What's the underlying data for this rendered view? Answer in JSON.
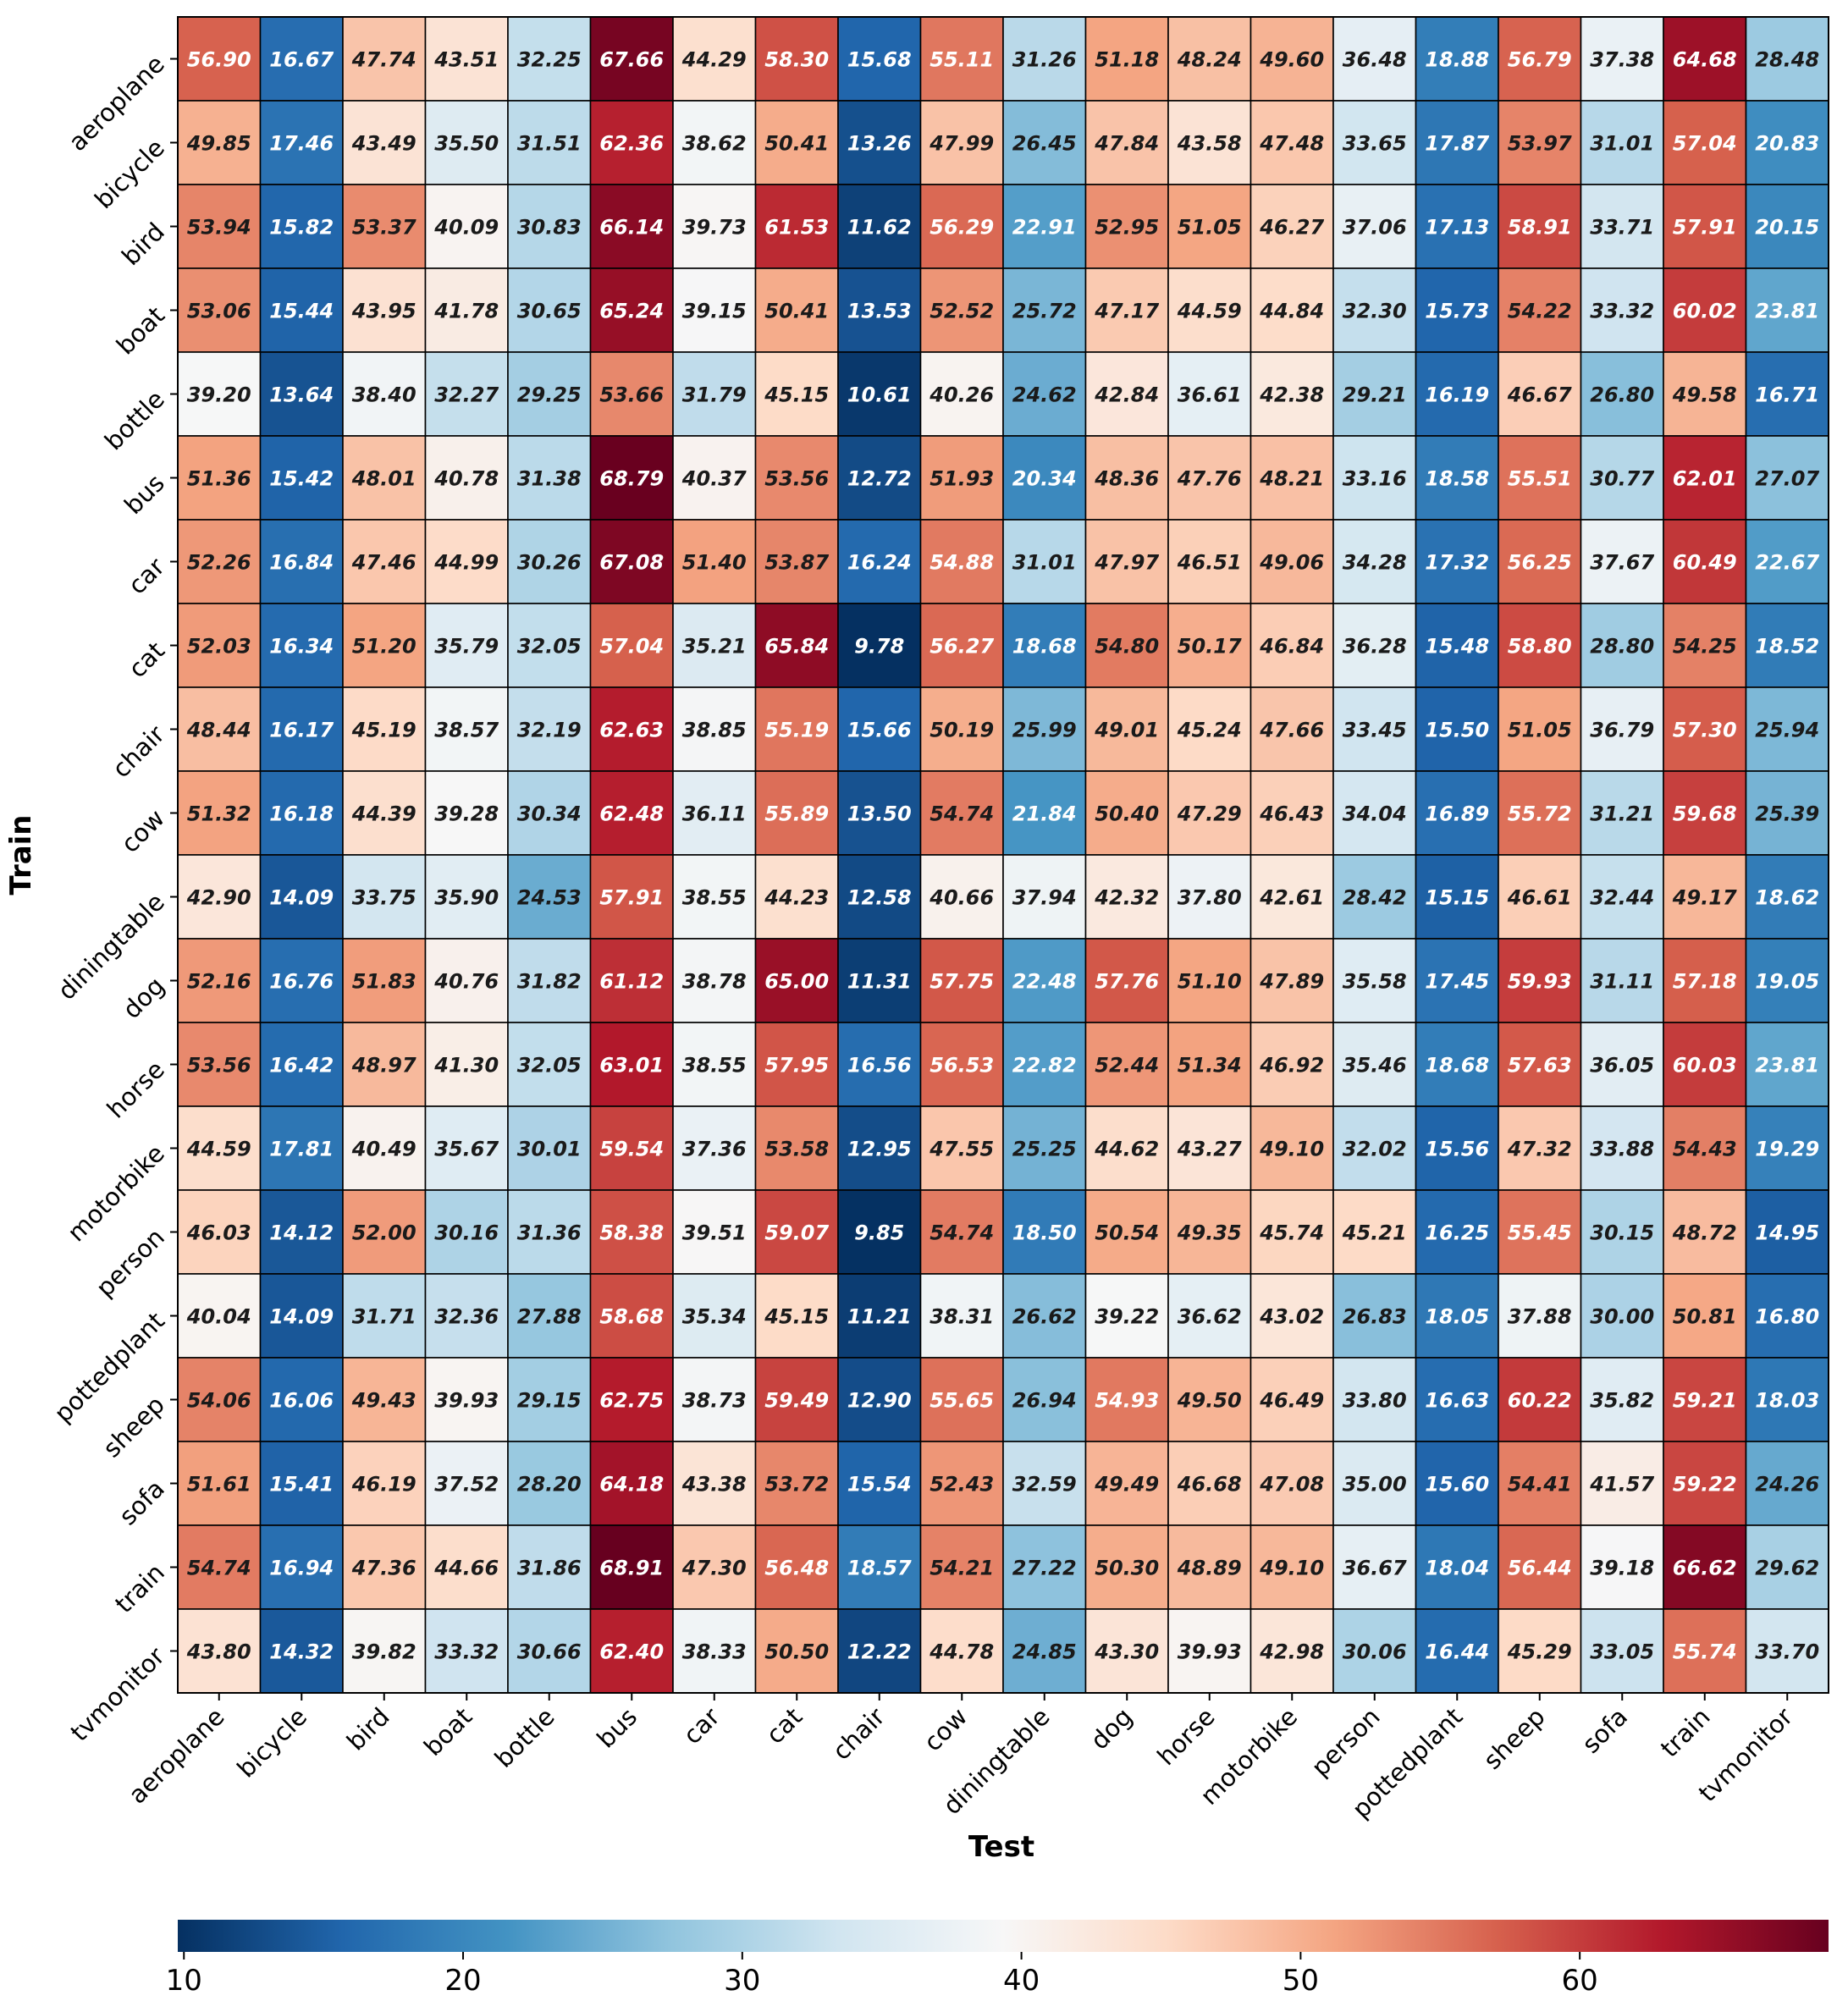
{
  "chart_data": {
    "type": "heatmap",
    "title": "",
    "xlabel": "Test",
    "ylabel": "Train",
    "categories": [
      "aeroplane",
      "bicycle",
      "bird",
      "boat",
      "bottle",
      "bus",
      "car",
      "cat",
      "chair",
      "cow",
      "diningtable",
      "dog",
      "horse",
      "motorbike",
      "person",
      "pottedplant",
      "sheep",
      "sofa",
      "train",
      "tvmonitor"
    ],
    "colormap": "RdBu_r",
    "colorbar": {
      "min": 9.78,
      "max": 68.91,
      "ticks": [
        10,
        20,
        30,
        40,
        50,
        60
      ],
      "orientation": "horizontal",
      "placement": "bottom"
    },
    "values": [
      [
        56.9,
        16.67,
        47.74,
        43.51,
        32.25,
        67.66,
        44.29,
        58.3,
        15.68,
        55.11,
        31.26,
        51.18,
        48.24,
        49.6,
        36.48,
        18.88,
        56.79,
        37.38,
        64.68,
        28.48
      ],
      [
        49.85,
        17.46,
        43.49,
        35.5,
        31.51,
        62.36,
        38.62,
        50.41,
        13.26,
        47.99,
        26.45,
        47.84,
        43.58,
        47.48,
        33.65,
        17.87,
        53.97,
        31.01,
        57.04,
        20.83
      ],
      [
        53.94,
        15.82,
        53.37,
        40.09,
        30.83,
        66.14,
        39.73,
        61.53,
        11.62,
        56.29,
        22.91,
        52.95,
        51.05,
        46.27,
        37.06,
        17.13,
        58.91,
        33.71,
        57.91,
        20.15
      ],
      [
        53.06,
        15.44,
        43.95,
        41.78,
        30.65,
        65.24,
        39.15,
        50.41,
        13.53,
        52.52,
        25.72,
        47.17,
        44.59,
        44.84,
        32.3,
        15.73,
        54.22,
        33.32,
        60.02,
        23.81
      ],
      [
        39.2,
        13.64,
        38.4,
        32.27,
        29.25,
        53.66,
        31.79,
        45.15,
        10.61,
        40.26,
        24.62,
        42.84,
        36.61,
        42.38,
        29.21,
        16.19,
        46.67,
        26.8,
        49.58,
        16.71
      ],
      [
        51.36,
        15.42,
        48.01,
        40.78,
        31.38,
        68.79,
        40.37,
        53.56,
        12.72,
        51.93,
        20.34,
        48.36,
        47.76,
        48.21,
        33.16,
        18.58,
        55.51,
        30.77,
        62.01,
        27.07
      ],
      [
        52.26,
        16.84,
        47.46,
        44.99,
        30.26,
        67.08,
        51.4,
        53.87,
        16.24,
        54.88,
        31.01,
        47.97,
        46.51,
        49.06,
        34.28,
        17.32,
        56.25,
        37.67,
        60.49,
        22.67
      ],
      [
        52.03,
        16.34,
        51.2,
        35.79,
        32.05,
        57.04,
        35.21,
        65.84,
        9.78,
        56.27,
        18.68,
        54.8,
        50.17,
        46.84,
        36.28,
        15.48,
        58.8,
        28.8,
        54.25,
        18.52
      ],
      [
        48.44,
        16.17,
        45.19,
        38.57,
        32.19,
        62.63,
        38.85,
        55.19,
        15.66,
        50.19,
        25.99,
        49.01,
        45.24,
        47.66,
        33.45,
        15.5,
        51.05,
        36.79,
        57.3,
        25.94
      ],
      [
        51.32,
        16.18,
        44.39,
        39.28,
        30.34,
        62.48,
        36.11,
        55.89,
        13.5,
        54.74,
        21.84,
        50.4,
        47.29,
        46.43,
        34.04,
        16.89,
        55.72,
        31.21,
        59.68,
        25.39
      ],
      [
        42.9,
        14.09,
        33.75,
        35.9,
        24.53,
        57.91,
        38.55,
        44.23,
        12.58,
        40.66,
        37.94,
        42.32,
        37.8,
        42.61,
        28.42,
        15.15,
        46.61,
        32.44,
        49.17,
        18.62
      ],
      [
        52.16,
        16.76,
        51.83,
        40.76,
        31.82,
        61.12,
        38.78,
        65.0,
        11.31,
        57.75,
        22.48,
        57.76,
        51.1,
        47.89,
        35.58,
        17.45,
        59.93,
        31.11,
        57.18,
        19.05
      ],
      [
        53.56,
        16.42,
        48.97,
        41.3,
        32.05,
        63.01,
        38.55,
        57.95,
        16.56,
        56.53,
        22.82,
        52.44,
        51.34,
        46.92,
        35.46,
        18.68,
        57.63,
        36.05,
        60.03,
        23.81
      ],
      [
        44.59,
        17.81,
        40.49,
        35.67,
        30.01,
        59.54,
        37.36,
        53.58,
        12.95,
        47.55,
        25.25,
        44.62,
        43.27,
        49.1,
        32.02,
        15.56,
        47.32,
        33.88,
        54.43,
        19.29
      ],
      [
        46.03,
        14.12,
        52.0,
        30.16,
        31.36,
        58.38,
        39.51,
        59.07,
        9.85,
        54.74,
        18.5,
        50.54,
        49.35,
        45.74,
        45.21,
        16.25,
        55.45,
        30.15,
        48.72,
        14.95
      ],
      [
        40.04,
        14.09,
        31.71,
        32.36,
        27.88,
        58.68,
        35.34,
        45.15,
        11.21,
        38.31,
        26.62,
        39.22,
        36.62,
        43.02,
        26.83,
        18.05,
        37.88,
        30.0,
        50.81,
        16.8
      ],
      [
        54.06,
        16.06,
        49.43,
        39.93,
        29.15,
        62.75,
        38.73,
        59.49,
        12.9,
        55.65,
        26.94,
        54.93,
        49.5,
        46.49,
        33.8,
        16.63,
        60.22,
        35.82,
        59.21,
        18.03
      ],
      [
        51.61,
        15.41,
        46.19,
        37.52,
        28.2,
        64.18,
        43.38,
        53.72,
        15.54,
        52.43,
        32.59,
        49.49,
        46.68,
        47.08,
        35.0,
        15.6,
        54.41,
        41.57,
        59.22,
        24.26
      ],
      [
        54.74,
        16.94,
        47.36,
        44.66,
        31.86,
        68.91,
        47.3,
        56.48,
        18.57,
        54.21,
        27.22,
        50.3,
        48.89,
        49.1,
        36.67,
        18.04,
        56.44,
        39.18,
        66.62,
        29.62
      ],
      [
        43.8,
        14.32,
        39.82,
        33.32,
        30.66,
        62.4,
        38.33,
        50.5,
        12.22,
        44.78,
        24.85,
        43.3,
        39.93,
        42.98,
        30.06,
        16.44,
        45.29,
        33.05,
        55.74,
        33.7
      ]
    ]
  }
}
